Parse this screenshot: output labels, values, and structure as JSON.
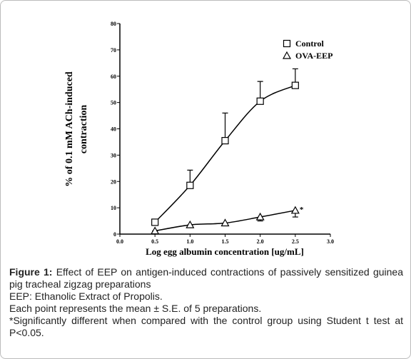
{
  "chart_data": {
    "type": "line",
    "xlabel": "Log egg albumin concentration [ug/mL]",
    "ylabel": [
      "% of 0.1 mM ACh-induced",
      "contraction"
    ],
    "x": [
      0.5,
      1.0,
      1.5,
      2.0,
      2.5
    ],
    "series": [
      {
        "name": "Control",
        "color": "#000000",
        "marker": "square",
        "values": [
          4.5,
          18.5,
          35.5,
          50.5,
          56.5
        ],
        "errors": [
          0,
          5.8,
          10.5,
          7.5,
          6.3
        ],
        "error_direction": "up"
      },
      {
        "name": "OVA-EEP",
        "color": "#000000",
        "marker": "triangle",
        "values": [
          1.2,
          3.5,
          4.2,
          6.5,
          9.0
        ],
        "errors": [
          0,
          0,
          0.5,
          1.5,
          2.5
        ],
        "error_direction": "down"
      }
    ],
    "annotation": "*",
    "xlim": [
      0,
      3
    ],
    "xticks": [
      {
        "value": 0,
        "label": "0.0"
      },
      {
        "value": 0.5,
        "label": "0.5"
      },
      {
        "value": 1,
        "label": "1.0"
      },
      {
        "value": 1.5,
        "label": "1.5"
      },
      {
        "value": 2,
        "label": "2.0"
      },
      {
        "value": 2.5,
        "label": "2.5"
      },
      {
        "value": 3,
        "label": "3.0"
      }
    ],
    "ylim": [
      0,
      80
    ],
    "yticks": [
      0,
      10,
      20,
      30,
      40,
      50,
      60,
      70,
      80
    ],
    "grid": false,
    "legend": "upper right"
  },
  "caption": {
    "label": "Figure 1:",
    "text": " Effect of EEP on antigen-induced contractions of passively sensitized guinea pig tracheal zigzag preparations",
    "notes": [
      "EEP: Ethanolic Extract of Propolis.",
      "Each point represents the mean ± S.E. of 5 preparations.",
      "*Significantly different when compared with the control group using Student t test at P<0.05."
    ]
  }
}
